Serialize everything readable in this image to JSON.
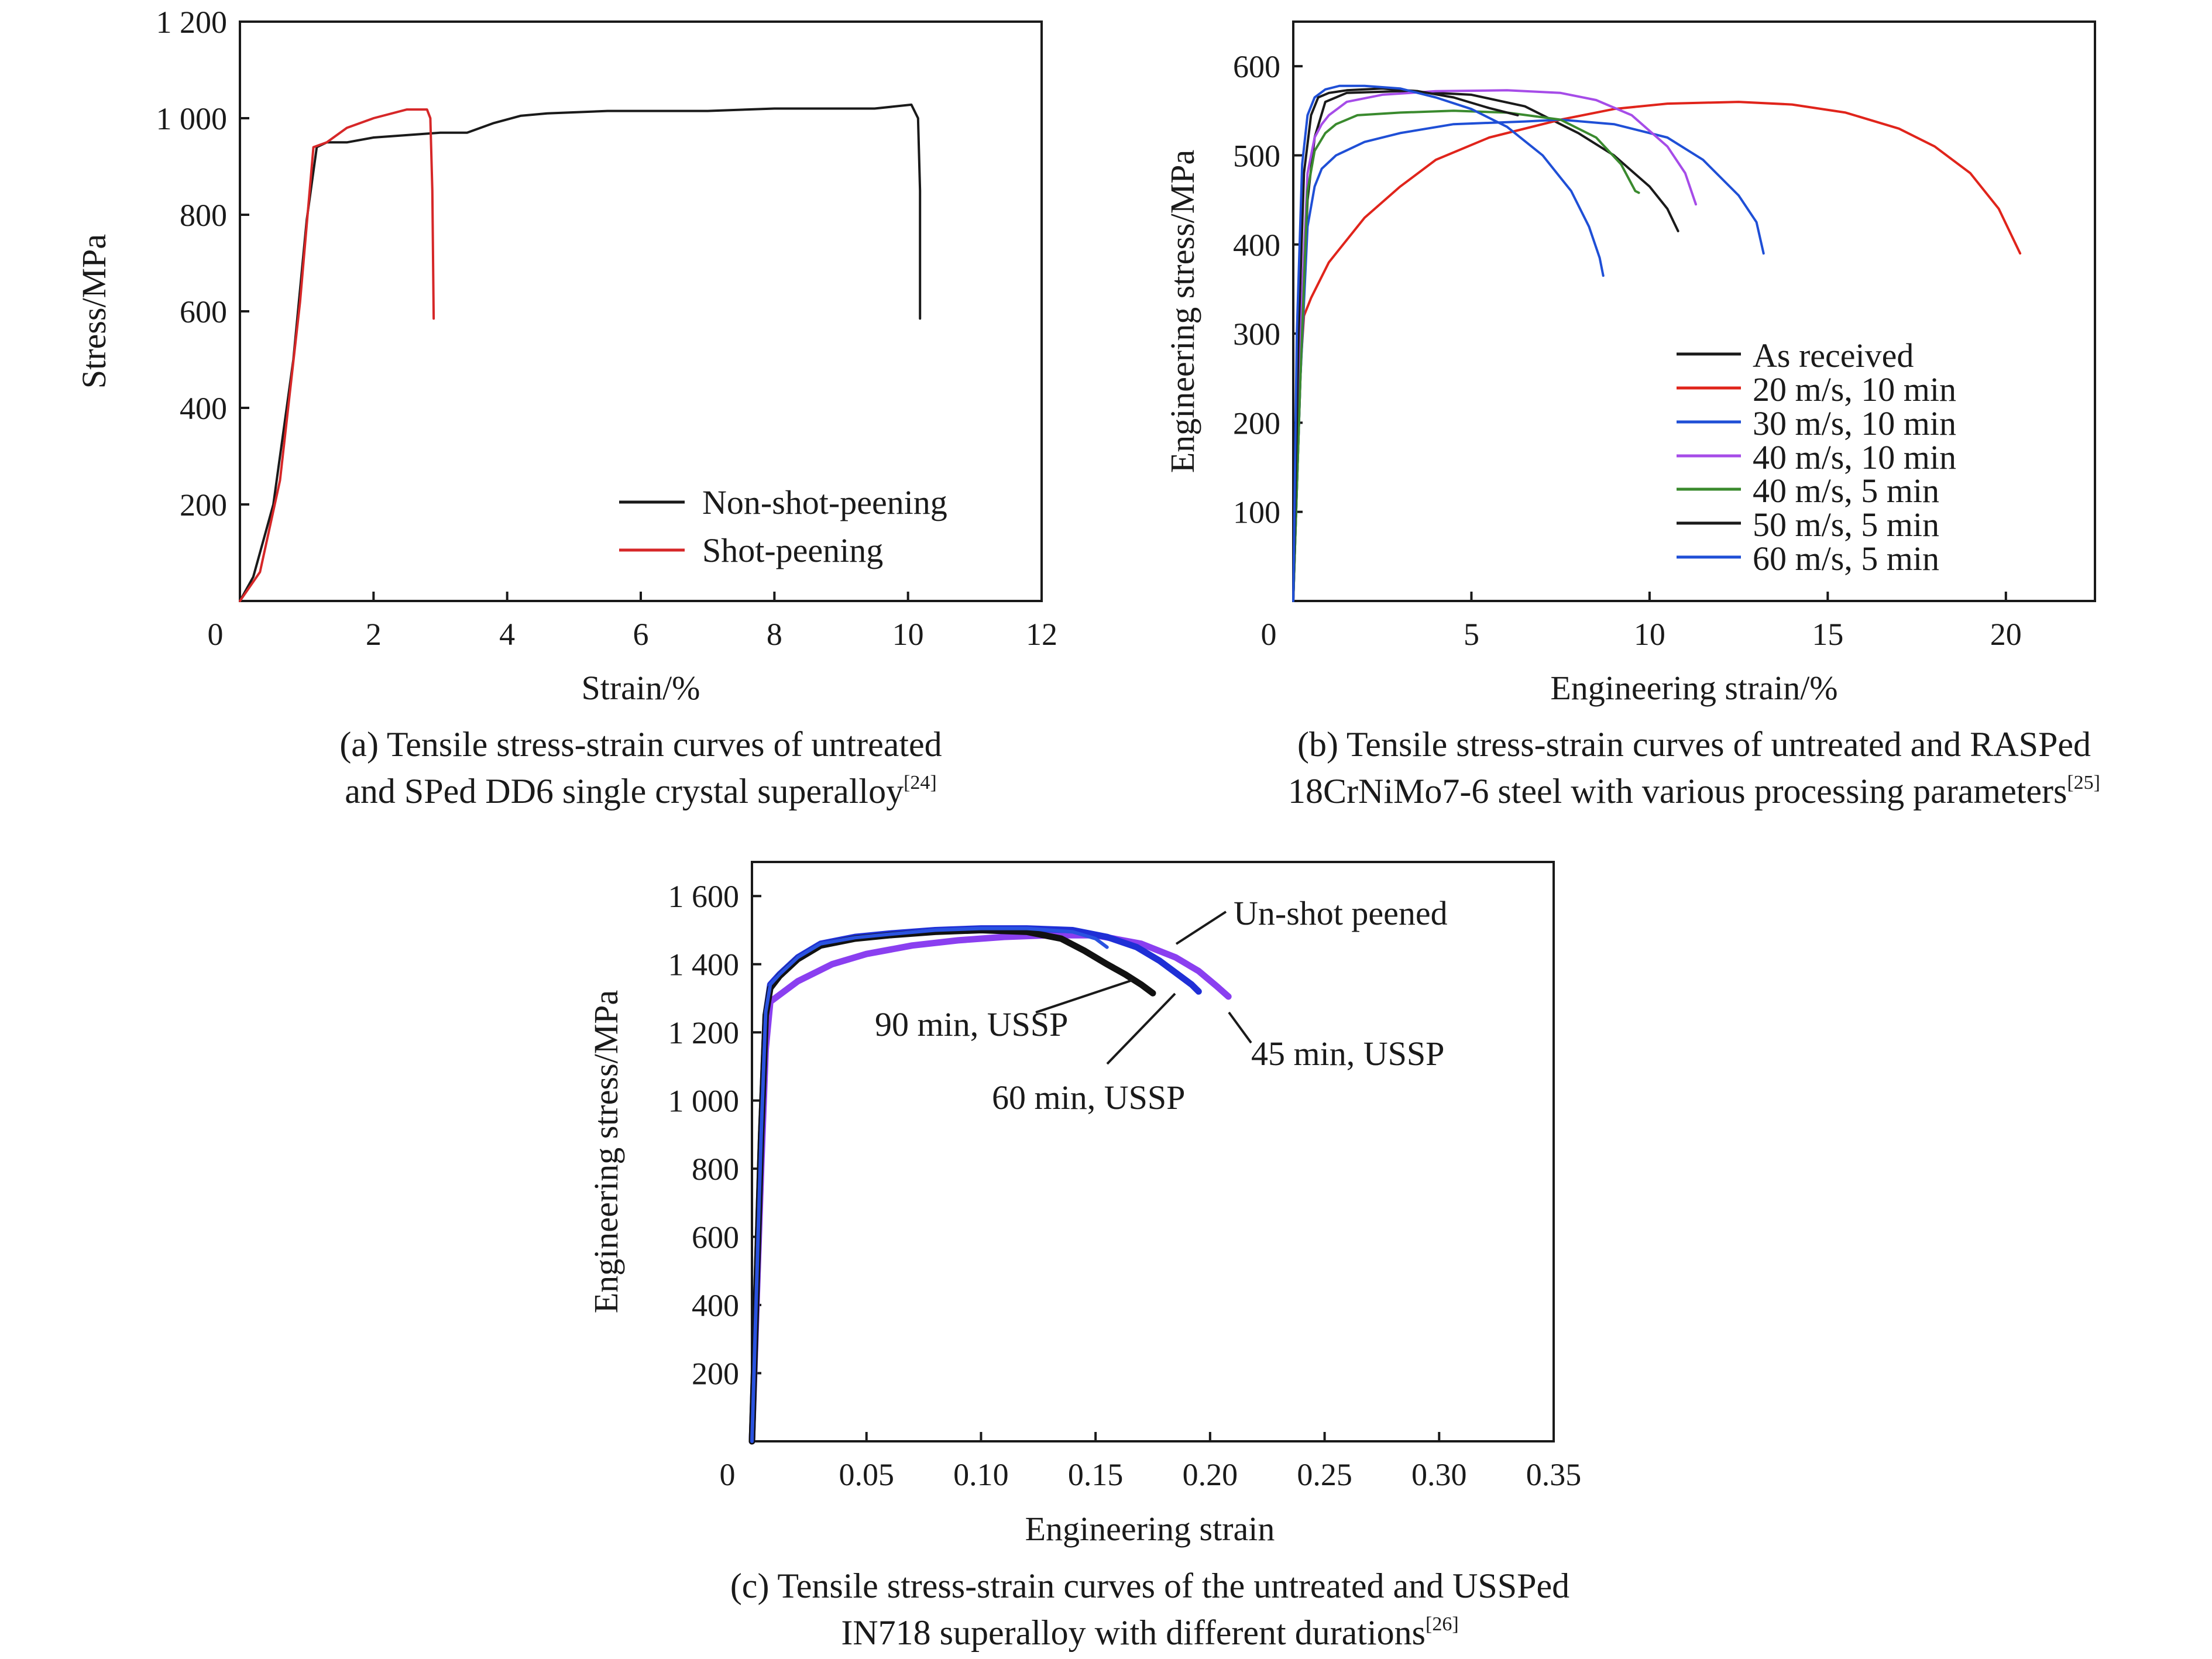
{
  "chart_data": [
    {
      "id": "a",
      "type": "line",
      "xlabel": "Strain/%",
      "ylabel": "Stress/MPa",
      "xlim": [
        0,
        12
      ],
      "ylim": [
        0,
        1200
      ],
      "xticks": [
        0,
        2,
        4,
        6,
        8,
        10,
        12
      ],
      "xtick_labels": [
        "0",
        "2",
        "4",
        "6",
        "8",
        "10",
        "12"
      ],
      "yticks": [
        200,
        400,
        600,
        800,
        1000,
        1200
      ],
      "ytick_labels": [
        "200",
        "400",
        "600",
        "800",
        "1 000",
        "1 200"
      ],
      "legend_placement": "lower-right",
      "caption_lines": [
        "(a) Tensile stress-strain curves of untreated",
        "and SPed DD6 single crystal superalloy"
      ],
      "caption_ref": "[24]",
      "series": [
        {
          "name": "Non-shot-peening",
          "color": "#1a1a1a",
          "x": [
            0,
            0.2,
            0.5,
            0.8,
            1.0,
            1.15,
            1.3,
            1.6,
            2.0,
            2.5,
            3.0,
            3.4,
            3.8,
            4.2,
            4.6,
            5.5,
            7.0,
            8.0,
            9.5,
            10.05,
            10.15,
            10.18,
            10.18
          ],
          "y": [
            0,
            50,
            200,
            500,
            790,
            940,
            950,
            950,
            960,
            965,
            970,
            970,
            990,
            1005,
            1010,
            1015,
            1015,
            1020,
            1020,
            1028,
            1000,
            850,
            585
          ]
        },
        {
          "name": "Shot-peening",
          "color": "#d62728",
          "x": [
            0,
            0.3,
            0.6,
            0.9,
            1.1,
            1.3,
            1.6,
            2.0,
            2.5,
            2.8,
            2.85,
            2.88,
            2.9
          ],
          "y": [
            0,
            60,
            250,
            620,
            940,
            950,
            980,
            1000,
            1018,
            1018,
            1000,
            850,
            585
          ]
        }
      ]
    },
    {
      "id": "b",
      "type": "line",
      "xlabel": "Engineering strain/%",
      "ylabel": "Engineering stress/MPa",
      "xlim": [
        0,
        22.5
      ],
      "ylim": [
        0,
        650
      ],
      "xticks": [
        0,
        5,
        10,
        15,
        20
      ],
      "xtick_labels": [
        "0",
        "5",
        "10",
        "15",
        "20"
      ],
      "yticks": [
        100,
        200,
        300,
        400,
        500,
        600
      ],
      "ytick_labels": [
        "100",
        "200",
        "300",
        "400",
        "500",
        "600"
      ],
      "legend_placement": "center-right",
      "caption_lines": [
        "(b) Tensile stress-strain curves of untreated and RASPed",
        "18CrNiMo7-6 steel with various processing parameters"
      ],
      "caption_ref": "[25]",
      "series": [
        {
          "name": "As received",
          "color": "#1a1a1a",
          "x": [
            0,
            0.2,
            0.4,
            0.6,
            0.9,
            1.5,
            3.0,
            5.0,
            6.5,
            8.0,
            9.0,
            10.0,
            10.5,
            10.8
          ],
          "y": [
            0,
            250,
            450,
            520,
            560,
            570,
            572,
            568,
            555,
            525,
            500,
            465,
            440,
            415
          ]
        },
        {
          "name": "20 m/s, 10 min",
          "color": "#e0241b",
          "x": [
            0,
            0.1,
            0.3,
            0.5,
            1.0,
            2.0,
            3.0,
            4.0,
            5.5,
            7.5,
            9.0,
            10.5,
            12.5,
            14.0,
            15.5,
            17.0,
            18.0,
            19.0,
            19.8,
            20.4
          ],
          "y": [
            0,
            200,
            320,
            340,
            380,
            430,
            465,
            495,
            520,
            540,
            552,
            558,
            560,
            557,
            548,
            530,
            510,
            480,
            440,
            390
          ]
        },
        {
          "name": "30 m/s, 10 min",
          "color": "#1f4fd6",
          "x": [
            0,
            0.2,
            0.4,
            0.6,
            0.8,
            1.2,
            2.0,
            3.0,
            4.5,
            6.5,
            7.5,
            9.0,
            10.5,
            11.5,
            12.5,
            13.0,
            13.2
          ],
          "y": [
            0,
            250,
            420,
            465,
            485,
            500,
            515,
            525,
            535,
            538,
            540,
            535,
            520,
            495,
            455,
            425,
            390
          ]
        },
        {
          "name": "40 m/s, 10 min",
          "color": "#a64ce8",
          "x": [
            0,
            0.2,
            0.4,
            0.6,
            0.8,
            1.0,
            1.5,
            2.5,
            4.0,
            6.0,
            7.5,
            8.5,
            9.5,
            10.5,
            11.0,
            11.3
          ],
          "y": [
            0,
            300,
            480,
            520,
            535,
            545,
            560,
            568,
            572,
            573,
            570,
            562,
            545,
            510,
            480,
            445
          ]
        },
        {
          "name": "40 m/s, 5 min",
          "color": "#3a8a2e",
          "x": [
            0,
            0.2,
            0.4,
            0.6,
            0.9,
            1.2,
            1.8,
            3.0,
            4.5,
            6.0,
            7.5,
            8.5,
            9.2,
            9.6,
            9.7
          ],
          "y": [
            0,
            250,
            460,
            505,
            525,
            535,
            545,
            548,
            550,
            548,
            540,
            520,
            490,
            460,
            458
          ]
        },
        {
          "name": "50 m/s, 5 min",
          "color": "#1a1a1a",
          "x": [
            0,
            0.15,
            0.3,
            0.5,
            0.7,
            1.0,
            1.5,
            2.5,
            3.5,
            4.5,
            5.5,
            6.3
          ],
          "y": [
            0,
            300,
            480,
            545,
            565,
            570,
            573,
            575,
            572,
            565,
            553,
            545
          ]
        },
        {
          "name": "60 m/s, 5 min",
          "color": "#1f4fd6",
          "x": [
            0,
            0.1,
            0.25,
            0.4,
            0.6,
            0.9,
            1.3,
            2.0,
            3.0,
            4.0,
            5.0,
            6.0,
            7.0,
            7.8,
            8.3,
            8.6,
            8.7
          ],
          "y": [
            0,
            300,
            490,
            545,
            565,
            574,
            578,
            578,
            575,
            565,
            552,
            532,
            500,
            460,
            420,
            385,
            365
          ]
        }
      ]
    },
    {
      "id": "c",
      "type": "line",
      "xlabel": "Engineering strain",
      "ylabel": "Engineering stress/MPa",
      "xlim": [
        0,
        0.35
      ],
      "ylim": [
        0,
        1700
      ],
      "xticks": [
        0,
        0.05,
        0.1,
        0.15,
        0.2,
        0.25,
        0.3,
        0.35
      ],
      "xtick_labels": [
        "0",
        "0.05",
        "0.10",
        "0.15",
        "0.20",
        "0.25",
        "0.30",
        "0.35"
      ],
      "yticks": [
        200,
        400,
        600,
        800,
        1000,
        1200,
        1400,
        1600
      ],
      "ytick_labels": [
        "200",
        "400",
        "600",
        "800",
        "1 000",
        "1 200",
        "1 400",
        "1 600"
      ],
      "caption_lines": [
        "(c) Tensile stress-strain curves of the untreated and USSPed",
        "IN718 superalloy with different durations"
      ],
      "caption_ref": "[26]",
      "annotations": [
        "Un-shot peened",
        "90 min, USSP",
        "60 min, USSP",
        "45 min, USSP"
      ],
      "series": [
        {
          "color": "#8a3ff0",
          "x": [
            0,
            0.002,
            0.004,
            0.006,
            0.008,
            0.012,
            0.02,
            0.035,
            0.05,
            0.07,
            0.09,
            0.11,
            0.13,
            0.15,
            0.17,
            0.185,
            0.195,
            0.203,
            0.208
          ],
          "y": [
            0,
            400,
            800,
            1150,
            1290,
            1310,
            1350,
            1400,
            1430,
            1455,
            1470,
            1480,
            1485,
            1485,
            1460,
            1420,
            1380,
            1335,
            1305
          ]
        },
        {
          "color": "#1f2fd6",
          "x": [
            0,
            0.002,
            0.004,
            0.006,
            0.008,
            0.012,
            0.02,
            0.03,
            0.045,
            0.06,
            0.08,
            0.1,
            0.12,
            0.14,
            0.155,
            0.168,
            0.178,
            0.186,
            0.192,
            0.195
          ],
          "y": [
            0,
            450,
            900,
            1250,
            1340,
            1370,
            1420,
            1460,
            1480,
            1490,
            1500,
            1505,
            1505,
            1500,
            1480,
            1450,
            1410,
            1370,
            1340,
            1320
          ]
        },
        {
          "color": "#111111",
          "x": [
            0,
            0.002,
            0.004,
            0.006,
            0.008,
            0.012,
            0.02,
            0.03,
            0.045,
            0.06,
            0.08,
            0.1,
            0.12,
            0.135,
            0.145,
            0.155,
            0.163,
            0.17,
            0.175
          ],
          "y": [
            0,
            450,
            900,
            1250,
            1330,
            1365,
            1415,
            1455,
            1475,
            1485,
            1495,
            1500,
            1495,
            1475,
            1440,
            1400,
            1370,
            1340,
            1315
          ]
        },
        {
          "color": "#2a52e0",
          "x": [
            0,
            0.002,
            0.004,
            0.006,
            0.008,
            0.012,
            0.02,
            0.03,
            0.045,
            0.06,
            0.08,
            0.1,
            0.12,
            0.14,
            0.15,
            0.155
          ],
          "y": [
            0,
            450,
            900,
            1260,
            1340,
            1370,
            1420,
            1460,
            1478,
            1488,
            1500,
            1505,
            1505,
            1495,
            1475,
            1450
          ]
        }
      ]
    }
  ]
}
